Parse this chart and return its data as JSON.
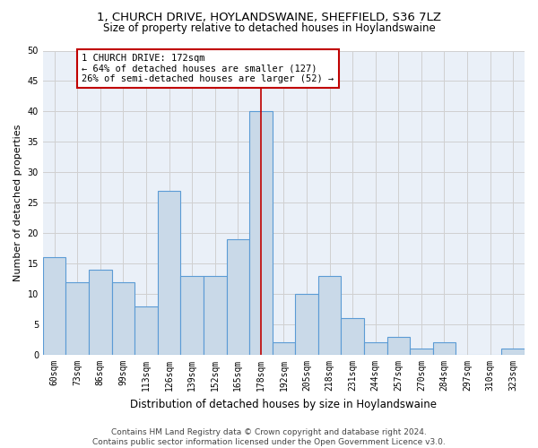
{
  "title": "1, CHURCH DRIVE, HOYLANDSWAINE, SHEFFIELD, S36 7LZ",
  "subtitle": "Size of property relative to detached houses in Hoylandswaine",
  "xlabel": "Distribution of detached houses by size in Hoylandswaine",
  "ylabel": "Number of detached properties",
  "categories": [
    "60sqm",
    "73sqm",
    "86sqm",
    "99sqm",
    "113sqm",
    "126sqm",
    "139sqm",
    "152sqm",
    "165sqm",
    "178sqm",
    "192sqm",
    "205sqm",
    "218sqm",
    "231sqm",
    "244sqm",
    "257sqm",
    "270sqm",
    "284sqm",
    "297sqm",
    "310sqm",
    "323sqm"
  ],
  "values": [
    16,
    12,
    14,
    12,
    8,
    27,
    13,
    13,
    19,
    40,
    2,
    10,
    13,
    6,
    2,
    3,
    1,
    2,
    0,
    0,
    1
  ],
  "bar_color": "#c9d9e8",
  "bar_edge_color": "#5b9bd5",
  "highlight_index": 9,
  "highlight_line_color": "#c00000",
  "annotation_text": "1 CHURCH DRIVE: 172sqm\n← 64% of detached houses are smaller (127)\n26% of semi-detached houses are larger (52) →",
  "annotation_box_color": "#ffffff",
  "annotation_box_edge_color": "#c00000",
  "ylim": [
    0,
    50
  ],
  "yticks": [
    0,
    5,
    10,
    15,
    20,
    25,
    30,
    35,
    40,
    45,
    50
  ],
  "grid_color": "#d0d0d0",
  "bg_color": "#eaf0f8",
  "footer": "Contains HM Land Registry data © Crown copyright and database right 2024.\nContains public sector information licensed under the Open Government Licence v3.0.",
  "title_fontsize": 9.5,
  "subtitle_fontsize": 8.5,
  "xlabel_fontsize": 8.5,
  "ylabel_fontsize": 8,
  "tick_fontsize": 7,
  "footer_fontsize": 6.5,
  "annotation_fontsize": 7.5
}
